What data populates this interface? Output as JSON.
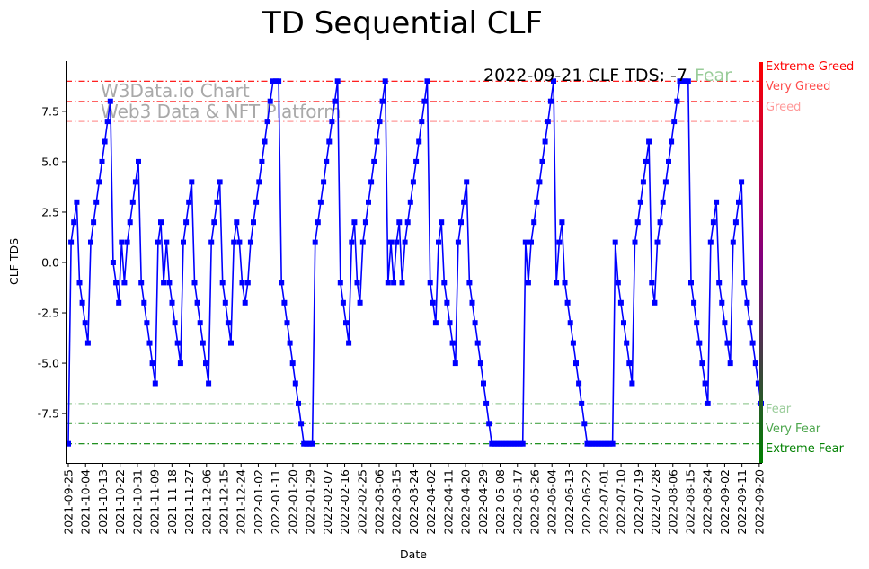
{
  "chart_data": {
    "type": "line",
    "title": "TD Sequential CLF",
    "xlabel": "Date",
    "ylabel": "CLF TDS",
    "ylim": [
      -10,
      10
    ],
    "yticks": [
      "-7.5",
      "-5.0",
      "-2.5",
      "0.0",
      "2.5",
      "5.0",
      "7.5"
    ],
    "x_start": "2021-09-25",
    "x_end": "2022-09-21",
    "xtick_labels": [
      "2021-09-25",
      "2021-10-04",
      "2021-10-13",
      "2021-10-22",
      "2021-10-31",
      "2021-11-09",
      "2021-11-18",
      "2021-11-27",
      "2021-12-06",
      "2021-12-15",
      "2021-12-24",
      "2022-01-02",
      "2022-01-11",
      "2022-01-20",
      "2022-01-29",
      "2022-02-07",
      "2022-02-16",
      "2022-02-25",
      "2022-03-06",
      "2022-03-15",
      "2022-03-24",
      "2022-04-02",
      "2022-04-11",
      "2022-04-20",
      "2022-04-29",
      "2022-05-08",
      "2022-05-17",
      "2022-05-26",
      "2022-06-04",
      "2022-06-13",
      "2022-06-22",
      "2022-07-01",
      "2022-07-10",
      "2022-07-19",
      "2022-07-28",
      "2022-08-06",
      "2022-08-15",
      "2022-08-24",
      "2022-09-02",
      "2022-09-11",
      "2022-09-20"
    ],
    "series": [
      {
        "name": "CLF TDS",
        "color": "#0000ff",
        "values": [
          -9,
          1,
          2,
          3,
          -1,
          -2,
          -3,
          -4,
          1,
          2,
          3,
          4,
          5,
          6,
          7,
          8,
          0,
          -1,
          -2,
          1,
          -1,
          1,
          2,
          3,
          4,
          5,
          -1,
          -2,
          -3,
          -4,
          -5,
          -6,
          1,
          2,
          -1,
          1,
          -1,
          -2,
          -3,
          -4,
          -5,
          1,
          2,
          3,
          4,
          -1,
          -2,
          -3,
          -4,
          -5,
          -6,
          1,
          2,
          3,
          4,
          -1,
          -2,
          -3,
          -4,
          1,
          2,
          1,
          -1,
          -2,
          -1,
          1,
          2,
          3,
          4,
          5,
          6,
          7,
          8,
          9,
          9,
          9,
          -1,
          -2,
          -3,
          -4,
          -5,
          -6,
          -7,
          -8,
          -9,
          -9,
          -9,
          -9,
          1,
          2,
          3,
          4,
          5,
          6,
          7,
          8,
          9,
          -1,
          -2,
          -3,
          -4,
          1,
          2,
          -1,
          -2,
          1,
          2,
          3,
          4,
          5,
          6,
          7,
          8,
          9,
          -1,
          1,
          -1,
          1,
          2,
          -1,
          1,
          2,
          3,
          4,
          5,
          6,
          7,
          8,
          9,
          -1,
          -2,
          -3,
          1,
          2,
          -1,
          -2,
          -3,
          -4,
          -5,
          1,
          2,
          3,
          4,
          -1,
          -2,
          -3,
          -4,
          -5,
          -6,
          -7,
          -8,
          -9,
          -9,
          -9,
          -9,
          -9,
          -9,
          -9,
          -9,
          -9,
          -9,
          -9,
          -9,
          1,
          -1,
          1,
          2,
          3,
          4,
          5,
          6,
          7,
          8,
          9,
          -1,
          1,
          2,
          -1,
          -2,
          -3,
          -4,
          -5,
          -6,
          -7,
          -8,
          -9,
          -9,
          -9,
          -9,
          -9,
          -9,
          -9,
          -9,
          -9,
          -9,
          1,
          -1,
          -2,
          -3,
          -4,
          -5,
          -6,
          1,
          2,
          3,
          4,
          5,
          6,
          -1,
          -2,
          1,
          2,
          3,
          4,
          5,
          6,
          7,
          8,
          9,
          9,
          9,
          9,
          -1,
          -2,
          -3,
          -4,
          -5,
          -6,
          -7,
          1,
          2,
          3,
          -1,
          -2,
          -3,
          -4,
          -5,
          1,
          2,
          3,
          4,
          -1,
          -2,
          -3,
          -4,
          -5,
          -6,
          -7
        ]
      }
    ],
    "levels": [
      {
        "name": "Extreme Greed",
        "value": 9,
        "color": "#ff0000"
      },
      {
        "name": "Very Greed",
        "value": 8,
        "color": "#ff4c4c"
      },
      {
        "name": "Greed",
        "value": 7,
        "color": "#ff9999"
      },
      {
        "name": "Fear",
        "value": -7,
        "color": "#99cc99"
      },
      {
        "name": "Very Fear",
        "value": -8,
        "color": "#4ca64c"
      },
      {
        "name": "Extreme Fear",
        "value": -9,
        "color": "#008000"
      }
    ],
    "watermark": [
      "W3Data.io Chart",
      "Web3 Data & NFT Platform"
    ],
    "annotation": {
      "text": "2022-09-21 CLF TDS: -7",
      "sentiment": "Fear",
      "sentiment_color": "#99cc99"
    }
  }
}
